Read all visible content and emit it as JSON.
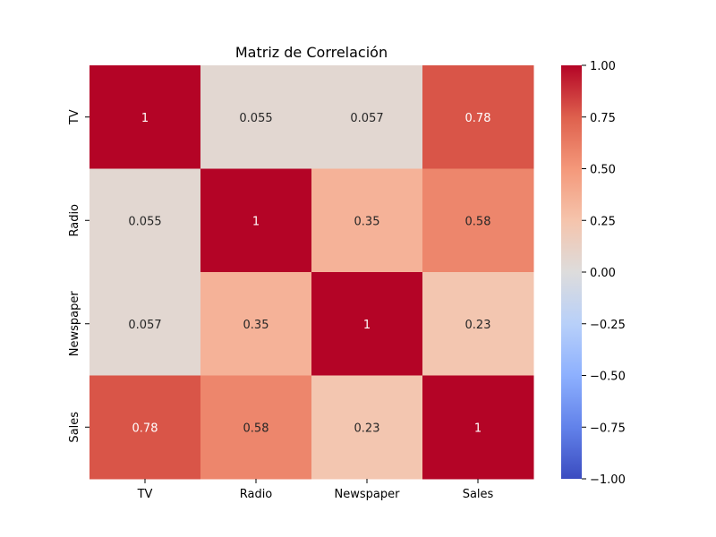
{
  "chart_data": {
    "type": "heatmap",
    "title": "Matriz de Correlación",
    "x_labels": [
      "TV",
      "Radio",
      "Newspaper",
      "Sales"
    ],
    "y_labels": [
      "TV",
      "Radio",
      "Newspaper",
      "Sales"
    ],
    "values": [
      [
        1.0,
        0.055,
        0.057,
        0.78
      ],
      [
        0.055,
        1.0,
        0.35,
        0.58
      ],
      [
        0.057,
        0.35,
        1.0,
        0.23
      ],
      [
        0.78,
        0.58,
        0.23,
        1.0
      ]
    ],
    "annotations": [
      [
        "1",
        "0.055",
        "0.057",
        "0.78"
      ],
      [
        "0.055",
        "1",
        "0.35",
        "0.58"
      ],
      [
        "0.057",
        "0.35",
        "1",
        "0.23"
      ],
      [
        "0.78",
        "0.58",
        "0.23",
        "1"
      ]
    ],
    "colormap": "coolwarm",
    "vmin": -1.0,
    "vmax": 1.0,
    "colorbar_ticks": [
      1.0,
      0.75,
      0.5,
      0.25,
      0.0,
      -0.25,
      -0.5,
      -0.75,
      -1.0
    ],
    "colorbar_tick_labels": [
      "1.00",
      "0.75",
      "0.50",
      "0.25",
      "0.00",
      "−0.25",
      "−0.50",
      "−0.75",
      "−1.00"
    ],
    "legend": "colorbar-right"
  }
}
